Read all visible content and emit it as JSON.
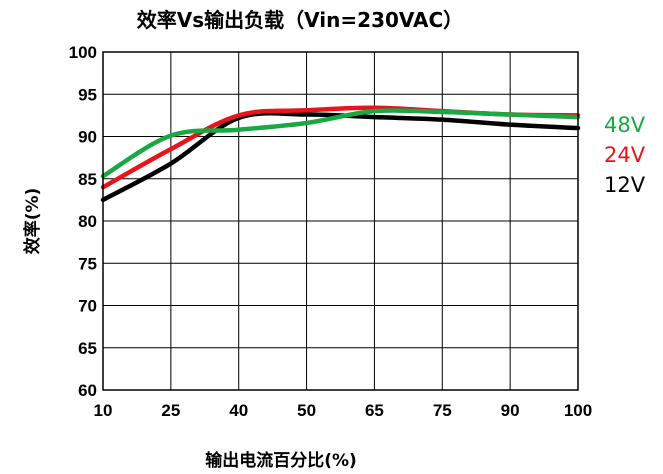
{
  "chart_data": {
    "type": "line",
    "title": "效率Vs输出负载（Vin=230VAC）",
    "xlabel": "输出电流百分比(%)",
    "ylabel": "效率(%)",
    "x_categories": [
      "10",
      "25",
      "40",
      "50",
      "65",
      "75",
      "90",
      "100"
    ],
    "ylim": [
      60,
      100
    ],
    "yticks": [
      "100",
      "95",
      "90",
      "85",
      "80",
      "75",
      "70",
      "65",
      "60"
    ],
    "grid": true,
    "legend_position": "right",
    "series": [
      {
        "name": "12V",
        "color": "#000000",
        "x": [
          10,
          25,
          40,
          50,
          65,
          75,
          90,
          100
        ],
        "y": [
          82.5,
          86.8,
          92.2,
          92.6,
          92.3,
          92.0,
          91.4,
          91.0
        ]
      },
      {
        "name": "24V",
        "color": "#e8141b",
        "x": [
          10,
          25,
          40,
          50,
          65,
          75,
          90,
          100
        ],
        "y": [
          84.0,
          88.5,
          92.5,
          93.1,
          93.4,
          93.0,
          92.6,
          92.5
        ]
      },
      {
        "name": "48V",
        "color": "#1aa843",
        "x": [
          10,
          25,
          40,
          50,
          65,
          75,
          90,
          100
        ],
        "y": [
          85.3,
          90.1,
          90.8,
          91.6,
          93.0,
          92.9,
          92.6,
          92.3
        ]
      }
    ],
    "legend_order": [
      "48V",
      "24V",
      "12V"
    ]
  }
}
